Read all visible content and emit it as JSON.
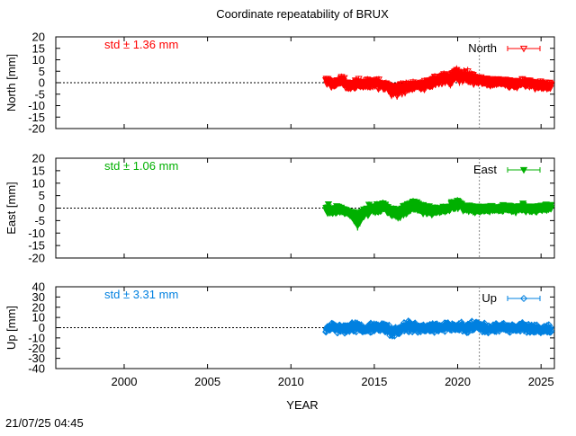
{
  "chart_data": {
    "type": "scatter",
    "title": "Coordinate repeatability of BRUX",
    "xlabel": "YEAR",
    "timestamp": "21/07/25 04:45",
    "xlim": [
      1995.9,
      2025.8
    ],
    "xticks": [
      2000,
      2005,
      2010,
      2015,
      2020,
      2025
    ],
    "reference_line_x": 2021.3,
    "panels": [
      {
        "name": "north",
        "ylabel": "North [mm]",
        "ylim": [
          -20,
          20
        ],
        "yticks": [
          -20,
          -15,
          -10,
          -5,
          0,
          5,
          10,
          15,
          20
        ],
        "std_label": "std ± 1.36 mm",
        "legend": "North",
        "color": "#ff0000",
        "marker": "triangle-down-open",
        "series_x": [
          2012.1,
          2012.5,
          2013.0,
          2013.5,
          2014.0,
          2014.5,
          2015.0,
          2015.5,
          2016.0,
          2016.5,
          2017.0,
          2017.5,
          2018.0,
          2018.5,
          2019.0,
          2019.5,
          2020.0,
          2020.5,
          2021.0,
          2021.5,
          2022.0,
          2022.5,
          2023.0,
          2023.5,
          2024.0,
          2024.5,
          2025.0,
          2025.6
        ],
        "series_y": [
          0.5,
          -0.5,
          1.0,
          -1.5,
          -0.5,
          -1.0,
          0.0,
          -1.0,
          -2.5,
          -3.0,
          -2.0,
          -1.0,
          -1.5,
          0.0,
          1.0,
          2.0,
          3.0,
          2.5,
          1.5,
          0.5,
          0.0,
          0.5,
          0.0,
          -0.5,
          0.0,
          -0.5,
          -1.0,
          -1.5
        ],
        "series_spread": [
          2.5,
          2.5,
          3.0,
          2.5,
          2.5,
          3.0,
          3.0,
          3.0,
          3.5,
          3.5,
          3.5,
          3.0,
          3.0,
          3.0,
          3.0,
          3.5,
          4.0,
          4.0,
          3.0,
          2.5,
          2.5,
          2.5,
          2.5,
          2.5,
          2.5,
          2.5,
          2.5,
          2.5
        ]
      },
      {
        "name": "east",
        "ylabel": "East [mm]",
        "ylim": [
          -20,
          20
        ],
        "yticks": [
          -20,
          -15,
          -10,
          -5,
          0,
          5,
          10,
          15,
          20
        ],
        "std_label": "std ± 1.06 mm",
        "legend": "East",
        "color": "#00b000",
        "marker": "triangle-down-filled",
        "series_x": [
          2012.1,
          2012.5,
          2013.0,
          2013.5,
          2014.0,
          2014.5,
          2015.0,
          2015.5,
          2016.0,
          2016.5,
          2017.0,
          2017.5,
          2018.0,
          2018.5,
          2019.0,
          2019.5,
          2020.0,
          2020.5,
          2021.0,
          2021.5,
          2022.0,
          2022.5,
          2023.0,
          2023.5,
          2024.0,
          2024.5,
          2025.0,
          2025.6
        ],
        "series_y": [
          0.0,
          -1.0,
          -0.5,
          -2.0,
          -5.0,
          -1.5,
          -0.5,
          0.5,
          -1.5,
          -2.5,
          0.0,
          1.0,
          -0.5,
          -1.5,
          -1.0,
          0.0,
          1.5,
          0.0,
          -0.5,
          -0.5,
          0.0,
          -0.5,
          0.0,
          -0.5,
          0.0,
          -0.5,
          0.0,
          0.5
        ],
        "series_spread": [
          2.0,
          2.0,
          2.0,
          2.0,
          4.0,
          2.5,
          2.5,
          3.0,
          2.5,
          3.0,
          3.0,
          3.0,
          2.5,
          2.5,
          2.5,
          2.5,
          3.0,
          2.5,
          2.0,
          2.0,
          2.0,
          2.0,
          2.0,
          2.0,
          2.0,
          2.0,
          2.0,
          2.0
        ]
      },
      {
        "name": "up",
        "ylabel": "Up [mm]",
        "ylim": [
          -40,
          40
        ],
        "yticks": [
          -40,
          -30,
          -20,
          -10,
          0,
          10,
          20,
          30,
          40
        ],
        "std_label": "std ± 3.31 mm",
        "legend": "Up",
        "color": "#0080e0",
        "marker": "diamond-open",
        "series_x": [
          2012.1,
          2012.5,
          2013.0,
          2013.5,
          2014.0,
          2014.5,
          2015.0,
          2015.5,
          2016.0,
          2016.5,
          2017.0,
          2017.5,
          2018.0,
          2018.5,
          2019.0,
          2019.5,
          2020.0,
          2020.5,
          2021.0,
          2021.5,
          2022.0,
          2022.5,
          2023.0,
          2023.5,
          2024.0,
          2024.5,
          2025.0,
          2025.6
        ],
        "series_y": [
          -1.0,
          1.0,
          -1.0,
          0.0,
          1.0,
          -1.0,
          0.0,
          1.0,
          -4.0,
          -2.0,
          1.0,
          0.0,
          -1.0,
          0.0,
          0.0,
          1.0,
          1.0,
          -1.0,
          2.0,
          0.0,
          -1.0,
          1.0,
          0.0,
          -1.0,
          1.0,
          -1.0,
          -2.0,
          0.0
        ],
        "series_spread": [
          6.0,
          7.0,
          6.0,
          7.0,
          7.0,
          6.0,
          7.0,
          7.0,
          7.0,
          6.0,
          7.0,
          6.0,
          6.0,
          7.0,
          6.0,
          7.0,
          7.0,
          6.0,
          7.0,
          6.0,
          6.0,
          7.0,
          6.0,
          6.0,
          7.0,
          6.0,
          6.0,
          6.0
        ]
      }
    ]
  }
}
